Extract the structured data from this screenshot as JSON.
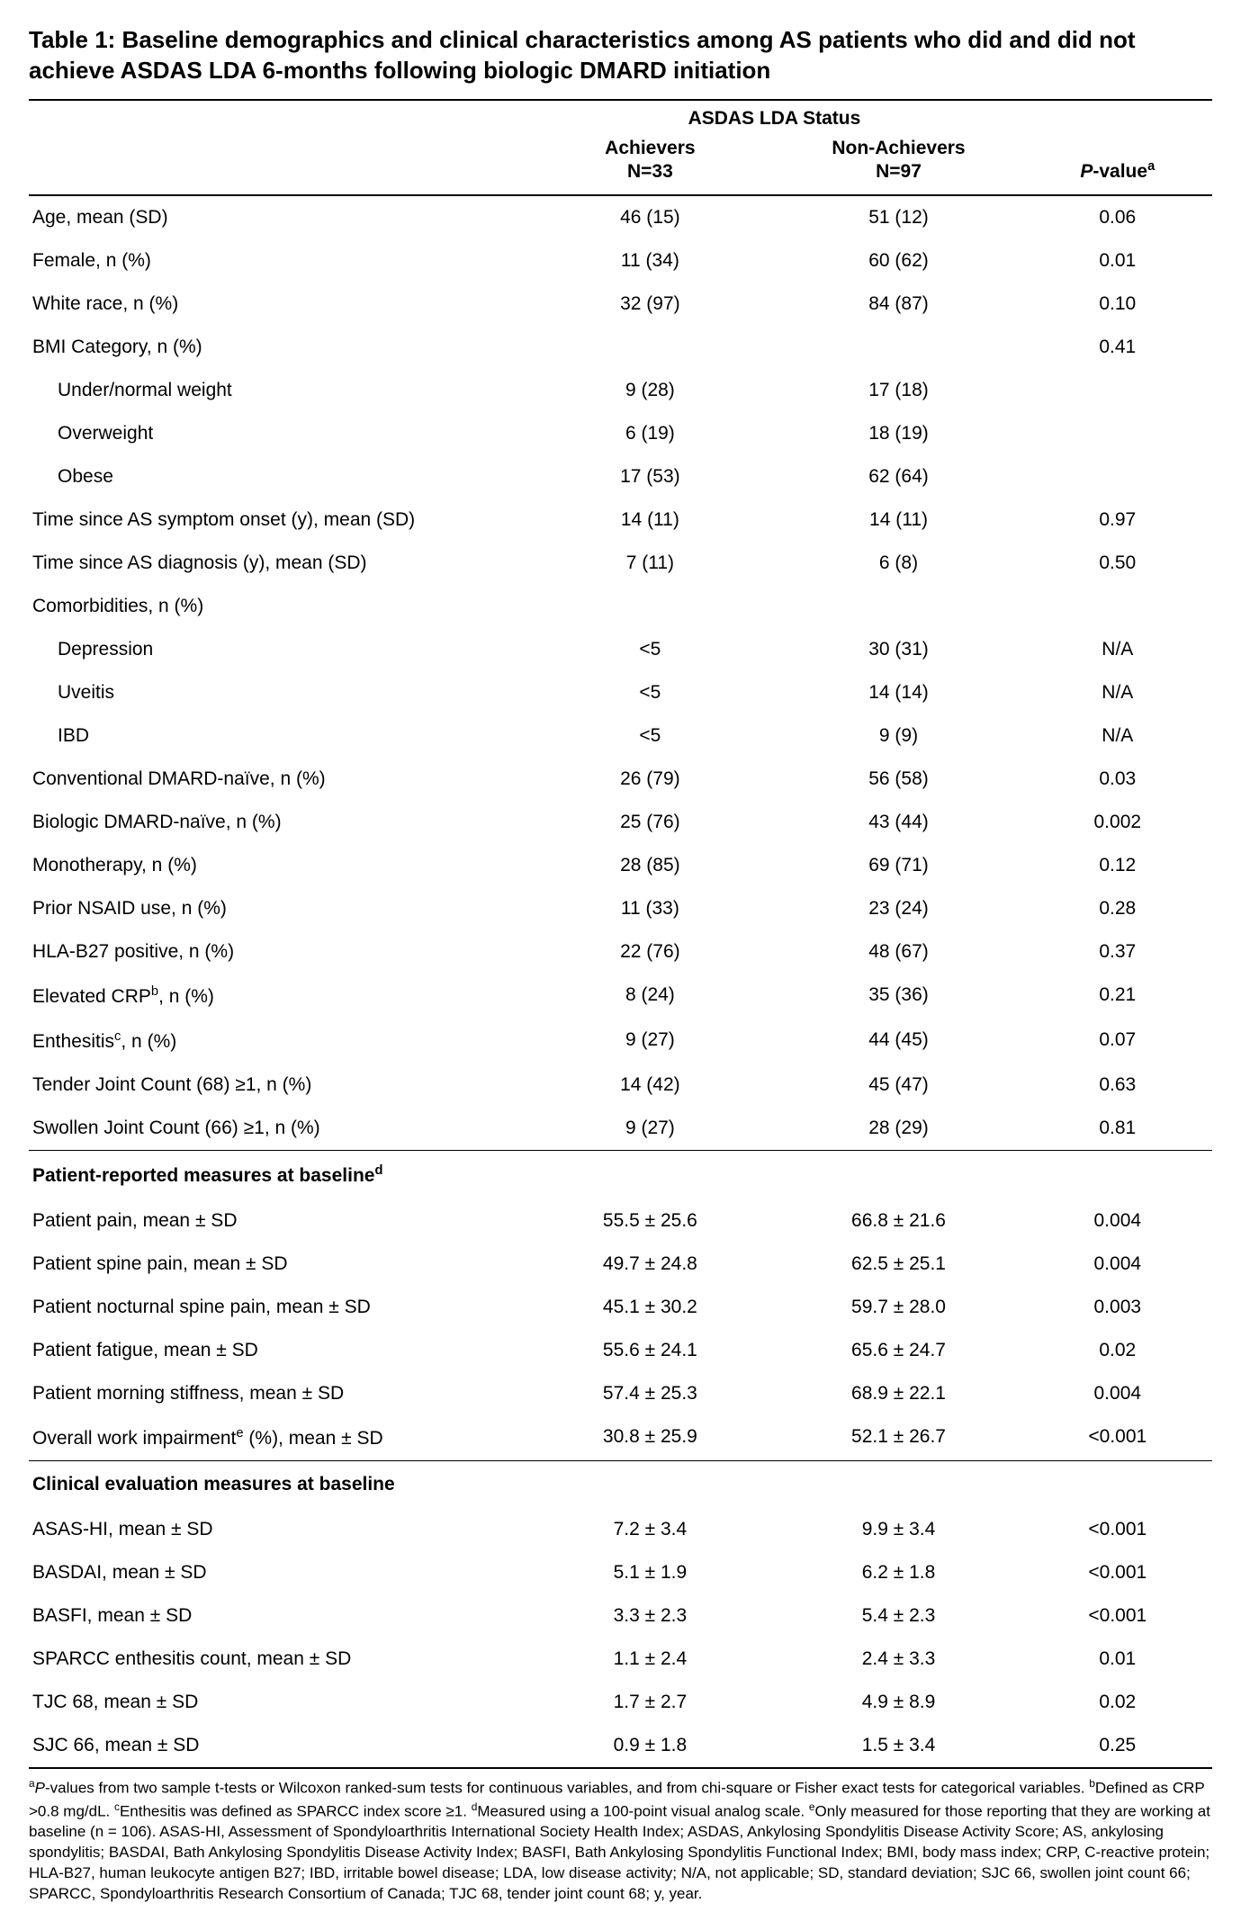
{
  "title": "Table 1: Baseline demographics and clinical characteristics among AS patients who did and did not achieve ASDAS LDA 6-months following biologic DMARD initiation",
  "header": {
    "spanner": "ASDAS LDA Status",
    "col1": "",
    "col2_line1": "Achievers",
    "col2_line2": "N=33",
    "col3_line1": "Non-Achievers",
    "col3_line2": "N=97",
    "col4_html": "<span class='italic'>P</span>-value<span class='sup'>a</span>"
  },
  "rows": [
    {
      "label": "Age, mean (SD)",
      "a": "46 (15)",
      "b": "51 (12)",
      "p": "0.06"
    },
    {
      "label": "Female, n (%)",
      "a": "11 (34)",
      "b": "60 (62)",
      "p": "0.01"
    },
    {
      "label": "White race, n (%)",
      "a": "32 (97)",
      "b": "84 (87)",
      "p": "0.10"
    },
    {
      "label": "BMI Category, n (%)",
      "a": "",
      "b": "",
      "p": "0.41"
    },
    {
      "label": "Under/normal weight",
      "indent": true,
      "a": "9 (28)",
      "b": "17 (18)",
      "p": ""
    },
    {
      "label": "Overweight",
      "indent": true,
      "a": "6 (19)",
      "b": "18 (19)",
      "p": ""
    },
    {
      "label": "Obese",
      "indent": true,
      "a": "17 (53)",
      "b": "62 (64)",
      "p": ""
    },
    {
      "label": "Time since AS symptom onset (y), mean (SD)",
      "a": "14 (11)",
      "b": "14 (11)",
      "p": "0.97"
    },
    {
      "label": "Time since AS diagnosis (y), mean (SD)",
      "a": "7 (11)",
      "b": "6 (8)",
      "p": "0.50"
    },
    {
      "label": "Comorbidities, n (%)",
      "a": "",
      "b": "",
      "p": ""
    },
    {
      "label": "Depression",
      "indent": true,
      "a": "<5",
      "b": "30 (31)",
      "p": "N/A"
    },
    {
      "label": "Uveitis",
      "indent": true,
      "a": "<5",
      "b": "14 (14)",
      "p": "N/A"
    },
    {
      "label": "IBD",
      "indent": true,
      "a": "<5",
      "b": "9 (9)",
      "p": "N/A"
    },
    {
      "label": "Conventional DMARD-naïve, n (%)",
      "a": "26 (79)",
      "b": "56 (58)",
      "p": "0.03"
    },
    {
      "label": "Biologic DMARD-naïve, n (%)",
      "a": "25 (76)",
      "b": "43 (44)",
      "p": "0.002"
    },
    {
      "label": "Monotherapy, n (%)",
      "a": "28 (85)",
      "b": "69 (71)",
      "p": "0.12"
    },
    {
      "label": "Prior NSAID use, n (%)",
      "a": "11 (33)",
      "b": "23 (24)",
      "p": "0.28"
    },
    {
      "label": "HLA-B27 positive, n (%)",
      "a": "22 (76)",
      "b": "48 (67)",
      "p": "0.37"
    },
    {
      "label_html": "Elevated CRP<span class='sup'>b</span>, n (%)",
      "a": "8 (24)",
      "b": "35 (36)",
      "p": "0.21"
    },
    {
      "label_html": "Enthesitis<span class='sup'>c</span>, n (%)",
      "a": "9 (27)",
      "b": "44 (45)",
      "p": "0.07"
    },
    {
      "label": "Tender Joint Count (68) ≥1, n (%)",
      "a": "14 (42)",
      "b": "45 (47)",
      "p": "0.63"
    },
    {
      "label": "Swollen Joint Count (66) ≥1, n (%)",
      "a": "9 (27)",
      "b": "28 (29)",
      "p": "0.81"
    },
    {
      "section_html": "Patient-reported measures at baseline<span class='sup'>d</span>"
    },
    {
      "label": "Patient pain, mean ± SD",
      "a": "55.5 ±  25.6",
      "b": "66.8 ±  21.6",
      "p": "0.004"
    },
    {
      "label": "Patient spine pain, mean ± SD",
      "a": "49.7 ±  24.8",
      "b": "62.5 ±  25.1",
      "p": "0.004"
    },
    {
      "label": "Patient nocturnal spine pain, mean ± SD",
      "a": "45.1 ±  30.2",
      "b": "59.7 ±  28.0",
      "p": "0.003"
    },
    {
      "label": "Patient fatigue, mean ± SD",
      "a": "55.6 ±  24.1",
      "b": "65.6 ±  24.7",
      "p": "0.02"
    },
    {
      "label": "Patient morning stiffness, mean ± SD",
      "a": "57.4 ±  25.3",
      "b": "68.9 ±  22.1",
      "p": "0.004"
    },
    {
      "label_html": "Overall work impairment<span class='sup'>e</span> (%), mean ± SD",
      "a": "30.8 ±  25.9",
      "b": "52.1 ±  26.7",
      "p": "<0.001"
    },
    {
      "section": "Clinical evaluation measures at baseline"
    },
    {
      "label": "ASAS-HI, mean ± SD",
      "a": "7.2 ±  3.4",
      "b": "9.9 ±  3.4",
      "p": "<0.001"
    },
    {
      "label": "BASDAI, mean ± SD",
      "a": "5.1 ±  1.9",
      "b": "6.2 ±  1.8",
      "p": "<0.001"
    },
    {
      "label": "BASFI, mean ± SD",
      "a": "3.3 ±  2.3",
      "b": "5.4 ±  2.3",
      "p": "<0.001"
    },
    {
      "label": "SPARCC enthesitis count, mean ± SD",
      "a": "1.1 ±  2.4",
      "b": "2.4 ±  3.3",
      "p": "0.01"
    },
    {
      "label": "TJC 68, mean ± SD",
      "a": "1.7 ±  2.7",
      "b": "4.9 ±  8.9",
      "p": "0.02"
    },
    {
      "label": "SJC 66, mean ± SD",
      "a": "0.9 ±  1.8",
      "b": "1.5 ±  3.4",
      "p": "0.25"
    }
  ],
  "footnotes_html": "<span class='sup'>a</span><span class='italic'>P</span>-values from two sample t-tests or Wilcoxon ranked-sum tests for continuous variables, and from chi-square or Fisher exact tests for categorical variables. <span class='sup'>b</span>Defined as CRP >0.8 mg/dL. <span class='sup'>c</span>Enthesitis was defined as SPARCC index score ≥1. <span class='sup'>d</span>Measured using a 100-point visual analog scale. <span class='sup'>e</span>Only measured for those reporting that they are working at baseline (n = 106). ASAS-HI, Assessment of Spondyloarthritis International Society Health Index; ASDAS, Ankylosing Spondylitis Disease Activity Score; AS, ankylosing spondylitis; BASDAI, Bath Ankylosing Spondylitis Disease Activity Index; BASFI, Bath Ankylosing Spondylitis Functional Index; BMI, body mass index; CRP, C-reactive protein; HLA-B27, human leukocyte antigen B27; IBD, irritable bowel disease; LDA, low disease activity; N/A, not applicable; SD, standard deviation; SJC 66, swollen joint count 66; SPARCC, Spondyloarthritis Research Consortium of Canada; TJC 68, tender joint count 68; y, year."
}
